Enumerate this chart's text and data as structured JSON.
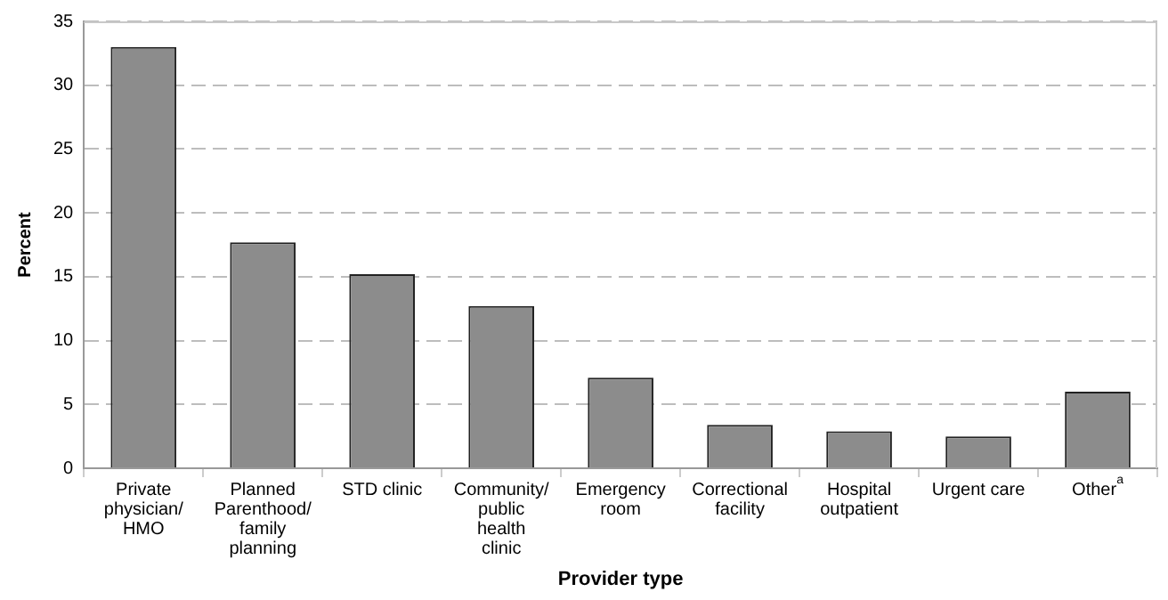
{
  "chart_data": {
    "type": "bar",
    "xlabel": "Provider type",
    "ylabel": "Percent",
    "categories": [
      "Private physician/HMO",
      "Planned Parenthood/family planning",
      "STD clinic",
      "Community/public health clinic",
      "Emergency room",
      "Correctional facility",
      "Hospital outpatient",
      "Urgent care",
      "Other$^{a}$"
    ],
    "values": [
      33.0,
      17.7,
      15.2,
      12.7,
      7.1,
      3.4,
      2.9,
      2.5,
      6.0
    ],
    "color": "#8c8c8c",
    "ylim": [
      0,
      35
    ],
    "yticks": [
      0,
      5,
      10,
      15,
      20,
      25,
      30,
      35
    ],
    "grid": "y",
    "legend": false
  }
}
